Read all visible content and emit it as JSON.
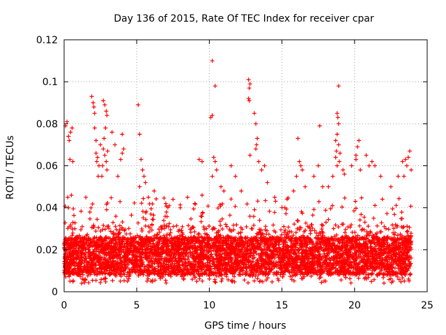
{
  "chart_data": {
    "type": "scatter",
    "title": "Day 136 of 2015, Rate Of TEC Index for receiver cpar",
    "xlabel": "GPS time / hours",
    "ylabel": "ROTI / TECUs",
    "xlim": [
      0,
      25
    ],
    "ylim": [
      0,
      0.12
    ],
    "xticks": [
      0,
      5,
      10,
      15,
      20,
      25
    ],
    "yticks": [
      0,
      0.02,
      0.04,
      0.06,
      0.08,
      0.1,
      0.12
    ],
    "xtick_labels": [
      "0",
      "5",
      "10",
      "15",
      "20",
      "25"
    ],
    "ytick_labels": [
      "0",
      "0.02",
      "0.04",
      "0.06",
      "0.08",
      "0.1",
      "0.12"
    ],
    "grid": true,
    "legend": "none",
    "marker": "plus",
    "color": "#ff0000",
    "series": [
      {
        "points": [
          [
            0.1,
            0.079
          ],
          [
            0.2,
            0.081
          ],
          [
            0.3,
            0.074
          ],
          [
            0.35,
            0.072
          ],
          [
            0.4,
            0.063
          ],
          [
            0.45,
            0.076
          ],
          [
            0.55,
            0.078
          ],
          [
            0.6,
            0.062
          ],
          [
            0.25,
            0.045
          ],
          [
            0.3,
            0.04
          ],
          [
            0.5,
            0.046
          ],
          [
            1.9,
            0.093
          ],
          [
            2.0,
            0.09
          ],
          [
            2.05,
            0.088
          ],
          [
            2.1,
            0.085
          ],
          [
            2.1,
            0.078
          ],
          [
            2.2,
            0.072
          ],
          [
            2.2,
            0.066
          ],
          [
            2.3,
            0.064
          ],
          [
            2.25,
            0.062
          ],
          [
            2.4,
            0.06
          ],
          [
            2.5,
            0.07
          ],
          [
            2.35,
            0.055
          ],
          [
            2.7,
            0.091
          ],
          [
            2.8,
            0.089
          ],
          [
            2.9,
            0.086
          ],
          [
            2.95,
            0.084
          ],
          [
            2.85,
            0.078
          ],
          [
            2.75,
            0.073
          ],
          [
            2.7,
            0.068
          ],
          [
            2.8,
            0.065
          ],
          [
            2.9,
            0.062
          ],
          [
            2.65,
            0.06
          ],
          [
            3.0,
            0.067
          ],
          [
            2.95,
            0.058
          ],
          [
            2.6,
            0.055
          ],
          [
            3.3,
            0.076
          ],
          [
            3.5,
            0.07
          ],
          [
            3.9,
            0.063
          ],
          [
            4.0,
            0.066
          ],
          [
            4.1,
            0.068
          ],
          [
            4.0,
            0.075
          ],
          [
            3.7,
            0.055
          ],
          [
            5.1,
            0.089
          ],
          [
            5.2,
            0.075
          ],
          [
            5.3,
            0.063
          ],
          [
            5.4,
            0.058
          ],
          [
            5.5,
            0.055
          ],
          [
            5.6,
            0.052
          ],
          [
            5.2,
            0.05
          ],
          [
            5.8,
            0.045
          ],
          [
            6.2,
            0.048
          ],
          [
            7.0,
            0.042
          ],
          [
            7.5,
            0.044
          ],
          [
            8.0,
            0.04
          ],
          [
            8.5,
            0.045
          ],
          [
            9.0,
            0.042
          ],
          [
            9.5,
            0.046
          ],
          [
            9.5,
            0.062
          ],
          [
            9.3,
            0.063
          ],
          [
            10.2,
            0.11
          ],
          [
            10.4,
            0.098
          ],
          [
            10.2,
            0.084
          ],
          [
            10.1,
            0.083
          ],
          [
            10.3,
            0.064
          ],
          [
            10.4,
            0.062
          ],
          [
            10.5,
            0.058
          ],
          [
            10.2,
            0.055
          ],
          [
            10.8,
            0.05
          ],
          [
            11.0,
            0.048
          ],
          [
            11.5,
            0.06
          ],
          [
            11.8,
            0.055
          ],
          [
            12.2,
            0.048
          ],
          [
            12.7,
            0.101
          ],
          [
            12.8,
            0.099
          ],
          [
            12.75,
            0.097
          ],
          [
            12.7,
            0.092
          ],
          [
            12.75,
            0.091
          ],
          [
            12.8,
            0.065
          ],
          [
            13.1,
            0.085
          ],
          [
            13.2,
            0.08
          ],
          [
            13.3,
            0.073
          ],
          [
            13.25,
            0.07
          ],
          [
            13.2,
            0.068
          ],
          [
            13.4,
            0.062
          ],
          [
            13.6,
            0.058
          ],
          [
            13.8,
            0.06
          ],
          [
            14.0,
            0.052
          ],
          [
            14.5,
            0.045
          ],
          [
            15.2,
            0.04
          ],
          [
            15.8,
            0.048
          ],
          [
            16.1,
            0.073
          ],
          [
            16.2,
            0.062
          ],
          [
            16.3,
            0.06
          ],
          [
            16.4,
            0.058
          ],
          [
            16.0,
            0.055
          ],
          [
            16.6,
            0.05
          ],
          [
            17.2,
            0.055
          ],
          [
            17.5,
            0.06
          ],
          [
            17.6,
            0.079
          ],
          [
            17.8,
            0.05
          ],
          [
            18.2,
            0.05
          ],
          [
            18.5,
            0.055
          ],
          [
            18.9,
            0.098
          ],
          [
            18.8,
            0.085
          ],
          [
            18.85,
            0.083
          ],
          [
            18.9,
            0.08
          ],
          [
            18.8,
            0.075
          ],
          [
            18.7,
            0.072
          ],
          [
            18.9,
            0.07
          ],
          [
            18.75,
            0.067
          ],
          [
            19.0,
            0.066
          ],
          [
            18.7,
            0.064
          ],
          [
            18.95,
            0.062
          ],
          [
            18.8,
            0.06
          ],
          [
            19.2,
            0.058
          ],
          [
            19.3,
            0.056
          ],
          [
            19.8,
            0.06
          ],
          [
            20.1,
            0.065
          ],
          [
            20.3,
            0.072
          ],
          [
            20.2,
            0.069
          ],
          [
            20.1,
            0.063
          ],
          [
            20.4,
            0.058
          ],
          [
            20.8,
            0.065
          ],
          [
            21.0,
            0.06
          ],
          [
            21.2,
            0.062
          ],
          [
            21.4,
            0.06
          ],
          [
            21.8,
            0.055
          ],
          [
            22.5,
            0.05
          ],
          [
            23.0,
            0.055
          ],
          [
            23.3,
            0.062
          ],
          [
            23.5,
            0.063
          ],
          [
            23.7,
            0.064
          ],
          [
            23.8,
            0.067
          ],
          [
            23.6,
            0.06
          ],
          [
            23.4,
            0.055
          ],
          [
            23.9,
            0.058
          ]
        ]
      }
    ]
  }
}
